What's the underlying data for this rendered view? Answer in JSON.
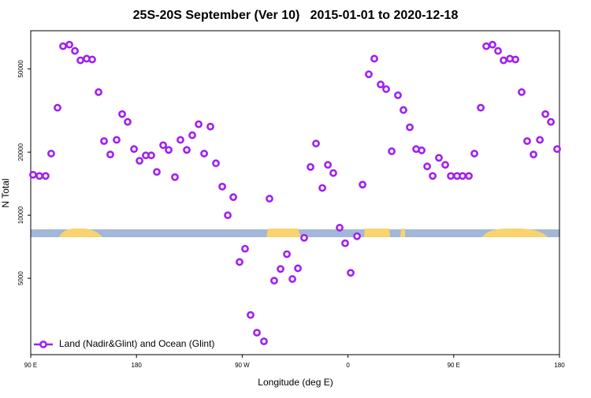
{
  "chart_data": {
    "type": "scatter",
    "title": "25S-20S September (Ver 10)   2015-01-01 to 2020-12-18",
    "xlabel": "Longitude (deg E)",
    "ylabel": "N Total",
    "xlim": [
      90,
      540
    ],
    "xticks": [
      {
        "value": 90,
        "label": "90 E"
      },
      180,
      {
        "value": 270,
        "label": "90 W"
      },
      {
        "value": 360,
        "label": "0"
      },
      {
        "value": 450,
        "label": "90 E"
      },
      {
        "value": 540,
        "label": "180"
      }
    ],
    "ylim": [
      2160,
      76000
    ],
    "log_y": true,
    "yticks": [
      5000,
      10000,
      20000,
      50000
    ],
    "legend": "bottom-left",
    "series": [
      {
        "name": "Land (Nadir&Glint) and Ocean (Glint)",
        "color": "#a020f0",
        "x": [
          92,
          97.4,
          102.7,
          107.4,
          112.8,
          117.5,
          122.9,
          127.6,
          132.3,
          137.6,
          142.3,
          147.7,
          152.4,
          157.7,
          163.1,
          167.8,
          172.5,
          177.9,
          182.6,
          187.9,
          192.6,
          197.3,
          202.7,
          207.4,
          212.7,
          217.4,
          222.8,
          227.5,
          232.9,
          237.6,
          242.9,
          247.6,
          253,
          257.7,
          262.4,
          267.7,
          272.4,
          277.1,
          282.5,
          288.5,
          293.2,
          297.2,
          302.6,
          308,
          312.7,
          317.4,
          322.7,
          328.1,
          332.8,
          338.2,
          342.9,
          347.5,
          352.9,
          357.6,
          362.3,
          367.7,
          372.4,
          377.7,
          382.4,
          387.8,
          392.5,
          397.2,
          402.5,
          407.2,
          412.6,
          418,
          422.7,
          427.4,
          432.1,
          437.4,
          442.8,
          447.5,
          452.8,
          457.5,
          462.9,
          467.6,
          473,
          477.7,
          483,
          487.7,
          492.4,
          497.8,
          502.5,
          507.8,
          512.5,
          517.9,
          523.3,
          528,
          532.7,
          538
        ],
        "values": [
          15600,
          15400,
          15400,
          19700,
          32600,
          64100,
          65200,
          60900,
          54900,
          55900,
          55400,
          38700,
          22600,
          19500,
          22900,
          30400,
          27900,
          20700,
          18200,
          19300,
          19300,
          16100,
          21600,
          20500,
          15200,
          22900,
          20500,
          24100,
          27200,
          19700,
          26500,
          17700,
          13700,
          10000,
          12200,
          5980,
          6920,
          3340,
          2750,
          2500,
          12000,
          4870,
          5540,
          6520,
          4960,
          5580,
          7800,
          17000,
          22000,
          13500,
          17400,
          15900,
          8720,
          7350,
          5310,
          7940,
          14000,
          47100,
          55900,
          42100,
          40000,
          20200,
          37400,
          31800,
          26300,
          20700,
          20400,
          17100,
          15400,
          18800,
          17400,
          15400,
          15400,
          15400,
          15400,
          19700,
          32600,
          64100,
          65200,
          60900,
          54900,
          55900,
          55400,
          38700,
          22600,
          19500,
          22900,
          30400,
          27900,
          20700
        ]
      }
    ]
  }
}
